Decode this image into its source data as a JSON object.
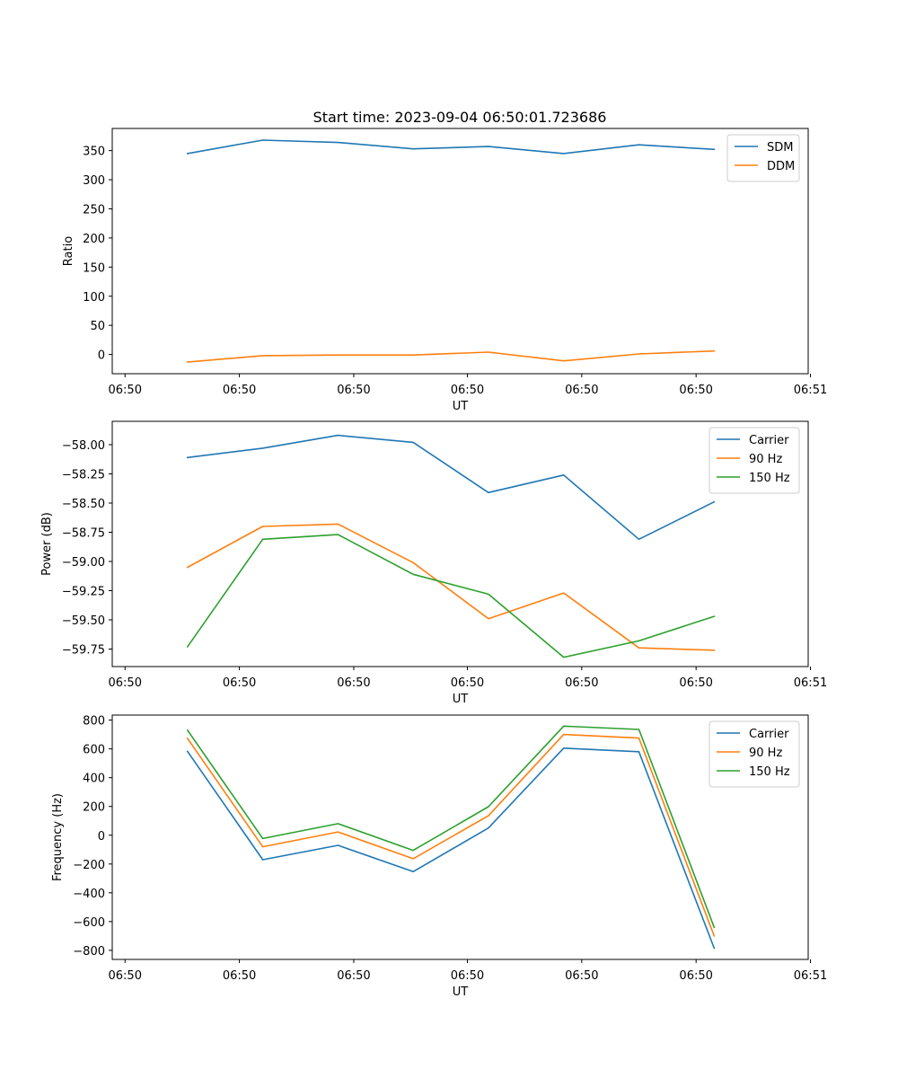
{
  "title": "Start time: 2023-09-04 06:50:01.723686",
  "colors": {
    "series1": "#1f77b4",
    "series2": "#ff7f0e",
    "series3": "#2ca02c",
    "axis": "#000000",
    "legend_border": "#cccccc"
  },
  "chart_data": [
    {
      "type": "line",
      "title": "Start time: 2023-09-04 06:50:01.723686",
      "xlabel": "UT",
      "ylabel": "Ratio",
      "xlim": [
        0,
        9.25
      ],
      "x": [
        1,
        2,
        3,
        4,
        5,
        6,
        7,
        8
      ],
      "xticks": [
        0.17,
        1.69,
        3.21,
        4.72,
        6.24,
        7.76,
        9.28
      ],
      "xtick_labels": [
        "06:50",
        "06:50",
        "06:50",
        "06:50",
        "06:50",
        "06:50",
        "06:51"
      ],
      "ylim": [
        -33,
        388
      ],
      "yticks": [
        0,
        50,
        100,
        150,
        200,
        250,
        300,
        350
      ],
      "ytick_labels": [
        "0",
        "50",
        "100",
        "150",
        "200",
        "250",
        "300",
        "350"
      ],
      "legend_position": "top-right",
      "series": [
        {
          "name": "SDM",
          "color": "#1f77b4",
          "values": [
            345,
            368,
            364,
            353,
            357,
            345,
            360,
            352
          ]
        },
        {
          "name": "DDM",
          "color": "#ff7f0e",
          "values": [
            -13,
            -2,
            -1,
            -1,
            4,
            -11,
            1,
            6
          ]
        }
      ]
    },
    {
      "type": "line",
      "title": "",
      "xlabel": "UT",
      "ylabel": "Power (dB)",
      "xlim": [
        0,
        9.25
      ],
      "x": [
        1,
        2,
        3,
        4,
        5,
        6,
        7,
        8
      ],
      "xticks": [
        0.17,
        1.69,
        3.21,
        4.72,
        6.24,
        7.76,
        9.28
      ],
      "xtick_labels": [
        "06:50",
        "06:50",
        "06:50",
        "06:50",
        "06:50",
        "06:50",
        "06:51"
      ],
      "ylim": [
        -59.9,
        -57.8
      ],
      "yticks": [
        -59.75,
        -59.5,
        -59.25,
        -59.0,
        -58.75,
        -58.5,
        -58.25,
        -58.0
      ],
      "ytick_labels": [
        "−59.75",
        "−59.50",
        "−59.25",
        "−59.00",
        "−58.75",
        "−58.50",
        "−58.25",
        "−58.00"
      ],
      "legend_position": "top-right",
      "series": [
        {
          "name": "Carrier",
          "color": "#1f77b4",
          "values": [
            -58.11,
            -58.03,
            -57.92,
            -57.98,
            -58.41,
            -58.26,
            -58.81,
            -58.49
          ]
        },
        {
          "name": "90 Hz",
          "color": "#ff7f0e",
          "values": [
            -59.05,
            -58.7,
            -58.68,
            -59.01,
            -59.49,
            -59.27,
            -59.74,
            -59.76
          ]
        },
        {
          "name": "150 Hz",
          "color": "#2ca02c",
          "values": [
            -59.73,
            -58.81,
            -58.77,
            -59.11,
            -59.28,
            -59.82,
            -59.68,
            -59.47
          ]
        }
      ]
    },
    {
      "type": "line",
      "title": "",
      "xlabel": "UT",
      "ylabel": "Frequency (Hz)",
      "xlim": [
        0,
        9.25
      ],
      "x": [
        1,
        2,
        3,
        4,
        5,
        6,
        7,
        8
      ],
      "xticks": [
        0.17,
        1.69,
        3.21,
        4.72,
        6.24,
        7.76,
        9.28
      ],
      "xtick_labels": [
        "06:50",
        "06:50",
        "06:50",
        "06:50",
        "06:50",
        "06:50",
        "06:51"
      ],
      "ylim": [
        -863,
        835
      ],
      "yticks": [
        -800,
        -600,
        -400,
        -200,
        0,
        200,
        400,
        600,
        800
      ],
      "ytick_labels": [
        "−800",
        "−600",
        "−400",
        "−200",
        "0",
        "200",
        "400",
        "600",
        "800"
      ],
      "legend_position": "top-right",
      "series": [
        {
          "name": "Carrier",
          "color": "#1f77b4",
          "values": [
            583,
            -170,
            -70,
            -253,
            50,
            605,
            580,
            -785
          ]
        },
        {
          "name": "90 Hz",
          "color": "#ff7f0e",
          "values": [
            673,
            -80,
            23,
            -163,
            135,
            700,
            675,
            -700
          ]
        },
        {
          "name": "150 Hz",
          "color": "#2ca02c",
          "values": [
            730,
            -23,
            80,
            -105,
            198,
            758,
            735,
            -640
          ]
        }
      ]
    }
  ]
}
